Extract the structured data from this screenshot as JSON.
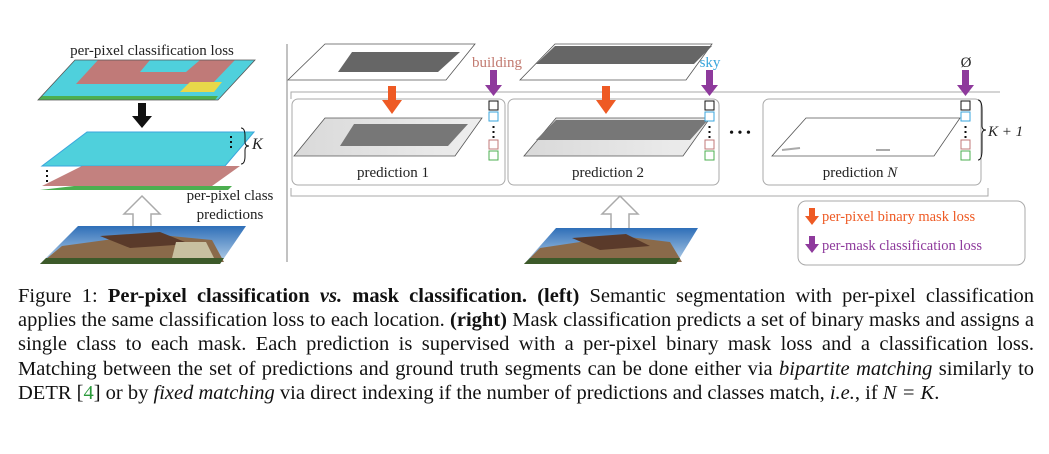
{
  "left": {
    "loss_label": "per-pixel classification loss",
    "k_label": "K",
    "predictions_label_1": "per-pixel class",
    "predictions_label_2": "predictions"
  },
  "right": {
    "class_labels": [
      "building",
      "sky",
      "Ø"
    ],
    "prediction_labels": [
      "prediction 1",
      "prediction 2",
      "prediction "
    ],
    "prediction_n_symbol": "N",
    "ellipsis": "• • •",
    "k_plus_one": "K + 1",
    "legend": {
      "mask_loss": "per-pixel binary mask loss",
      "class_loss": "per-mask classification loss"
    }
  },
  "colors": {
    "mask_loss_arrow": "#ee5a24",
    "class_loss_arrow": "#8e3a9c",
    "building": "#c27a70",
    "sky": "#3aa6dc",
    "sky_layer": "#4fd0dc",
    "ground_layer": "#4caf50",
    "building_layer": "#c07a78"
  },
  "caption": {
    "figure_label": "Figure 1: ",
    "title": "Per-pixel classification ",
    "title_vs": "vs.",
    "title_rest": " mask classification.",
    "left_tag": "(left)",
    "left_text": " Semantic segmentation with per-pixel classification applies the same classification loss to each location. ",
    "right_tag": "(right)",
    "right_text": " Mask classification predicts a set of binary masks and assigns a single class to each mask. Each prediction is supervised with a per-pixel binary mask loss and a classification loss. Matching between the set of predictions and ground truth segments can be done either via ",
    "bipartite": "bipartite matching",
    "mid_text": " similarly to DETR [",
    "ref": "4",
    "ref_close": "] or by ",
    "fixed": "fixed matching",
    "end_text": " via direct indexing if the number of predictions and classes match, ",
    "ie": "i.e.",
    "if_text": ", if ",
    "equation": "N = K",
    "period": "."
  }
}
